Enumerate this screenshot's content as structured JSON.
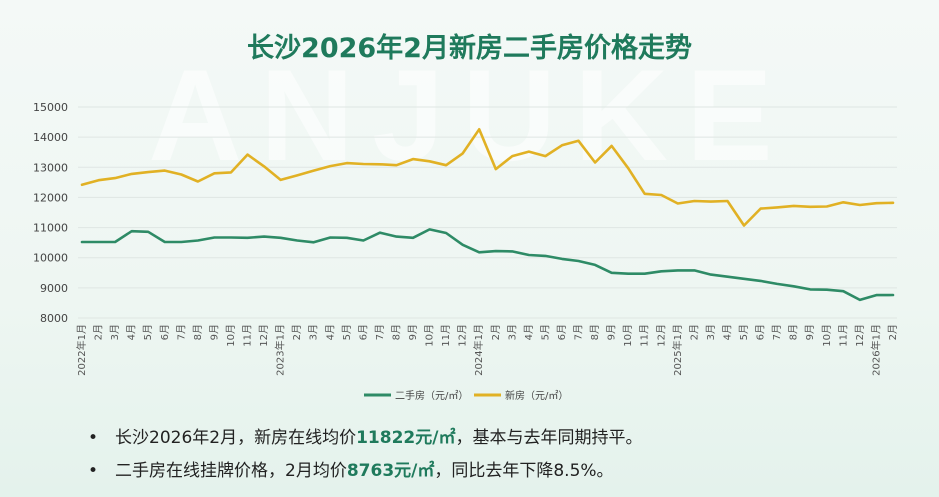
{
  "title": "长沙2026年2月新房二手房价格走势",
  "bullets": [
    {
      "pre": "长沙2026年2月，新房在线均价",
      "value": "11822元/㎡",
      "post": "，基本与去年同期持平。"
    },
    {
      "pre": "二手房在线挂牌价格，2月均价",
      "value": "8763元/㎡",
      "post": "，同比去年下降8.5%。"
    }
  ],
  "colors": {
    "second_hand": "#2e8b66",
    "new_house": "#e1b124",
    "title": "#1f7a5c"
  },
  "chart_data": {
    "type": "line",
    "ylim": [
      8000,
      15000
    ],
    "yticks": [
      8000,
      9000,
      10000,
      11000,
      12000,
      13000,
      14000,
      15000
    ],
    "x": [
      "2022年1月",
      "2月",
      "3月",
      "4月",
      "5月",
      "6月",
      "7月",
      "8月",
      "9月",
      "10月",
      "11月",
      "12月",
      "2023年1月",
      "2月",
      "3月",
      "4月",
      "5月",
      "6月",
      "7月",
      "8月",
      "9月",
      "10月",
      "11月",
      "12月",
      "2024年1月",
      "2月",
      "3月",
      "4月",
      "5月",
      "6月",
      "7月",
      "8月",
      "9月",
      "10月",
      "11月",
      "12月",
      "2025年1月",
      "2月",
      "3月",
      "4月",
      "5月",
      "6月",
      "7月",
      "8月",
      "9月",
      "10月",
      "11月",
      "12月",
      "2026年1月",
      "2月"
    ],
    "series": [
      {
        "name": "二手房（元/㎡）",
        "color": "#2e8b66",
        "values": [
          10520,
          10520,
          10520,
          10880,
          10860,
          10520,
          10520,
          10570,
          10670,
          10670,
          10660,
          10700,
          10660,
          10570,
          10510,
          10670,
          10660,
          10570,
          10830,
          10700,
          10660,
          10940,
          10820,
          10430,
          10180,
          10220,
          10210,
          10090,
          10060,
          9960,
          9890,
          9760,
          9500,
          9470,
          9470,
          9550,
          9580,
          9580,
          9440,
          9370,
          9300,
          9230,
          9130,
          9050,
          8950,
          8940,
          8890,
          8600,
          8760,
          8763
        ]
      },
      {
        "name": "新房（元/㎡）",
        "color": "#e1b124",
        "values": [
          12420,
          12570,
          12640,
          12780,
          12840,
          12890,
          12760,
          12530,
          12800,
          12830,
          13420,
          13030,
          12580,
          12730,
          12890,
          13040,
          13140,
          13110,
          13100,
          13070,
          13270,
          13200,
          13070,
          13460,
          14260,
          12940,
          13370,
          13520,
          13370,
          13730,
          13880,
          13160,
          13710,
          12970,
          12120,
          12080,
          11800,
          11880,
          11860,
          11880,
          11070,
          11630,
          11670,
          11720,
          11690,
          11700,
          11840,
          11750,
          11810,
          11822
        ]
      }
    ],
    "legend_position": "bottom",
    "grid": true
  }
}
